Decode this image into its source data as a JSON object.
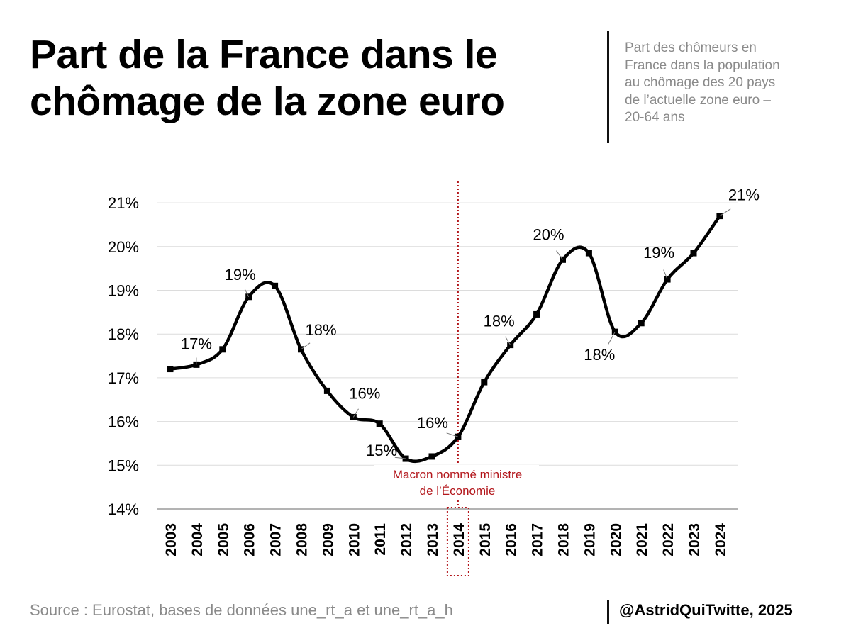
{
  "header": {
    "title_line1": "Part de la France dans le",
    "title_line2": "chômage de la zone euro",
    "subtitle_lines": [
      "Part des chômeurs en",
      "France dans la population",
      "au chômage des 20 pays",
      "de l’actuelle zone euro –",
      "20-64 ans"
    ]
  },
  "footer": {
    "source": "Source : Eurostat, bases de données une_rt_a et une_rt_a_h",
    "credit": "@AstridQuiTwitte, 2025"
  },
  "chart_data": {
    "type": "line",
    "title": "Part de la France dans le chômage de la zone euro",
    "subtitle": "Part des chômeurs en France dans la population au chômage des 20 pays de l’actuelle zone euro – 20-64 ans",
    "xlabel": "",
    "ylabel": "",
    "categories": [
      "2003",
      "2004",
      "2005",
      "2006",
      "2007",
      "2008",
      "2009",
      "2010",
      "2011",
      "2012",
      "2013",
      "2014",
      "2015",
      "2016",
      "2017",
      "2018",
      "2019",
      "2020",
      "2021",
      "2022",
      "2023",
      "2024"
    ],
    "series": [
      {
        "values": [
          17.2,
          17.3,
          17.65,
          18.85,
          19.1,
          17.65,
          16.7,
          16.1,
          15.95,
          15.15,
          15.2,
          15.65,
          16.9,
          17.75,
          18.45,
          19.7,
          19.85,
          18.05,
          18.25,
          19.25,
          19.85,
          20.7
        ],
        "color": "#000000"
      }
    ],
    "ylim": [
      14,
      21.6
    ],
    "yticks": [
      14,
      15,
      16,
      17,
      18,
      19,
      20,
      21
    ],
    "ytick_labels": [
      "14%",
      "15%",
      "16%",
      "17%",
      "18%",
      "19%",
      "20%",
      "21%"
    ],
    "grid": "horizontal",
    "data_labels": [
      {
        "year": "2004",
        "text": "17%"
      },
      {
        "year": "2006",
        "text": "19%"
      },
      {
        "year": "2008",
        "text": "18%"
      },
      {
        "year": "2010",
        "text": "16%"
      },
      {
        "year": "2012",
        "text": "15%"
      },
      {
        "year": "2014",
        "text": "16%"
      },
      {
        "year": "2016",
        "text": "18%"
      },
      {
        "year": "2018",
        "text": "20%"
      },
      {
        "year": "2020",
        "text": "18%"
      },
      {
        "year": "2022",
        "text": "19%"
      },
      {
        "year": "2024",
        "text": "21%"
      }
    ],
    "annotation": {
      "year": "2014",
      "line1": "Macron nommé ministre",
      "line2": "de l’Économie",
      "color": "#b3161b"
    }
  }
}
